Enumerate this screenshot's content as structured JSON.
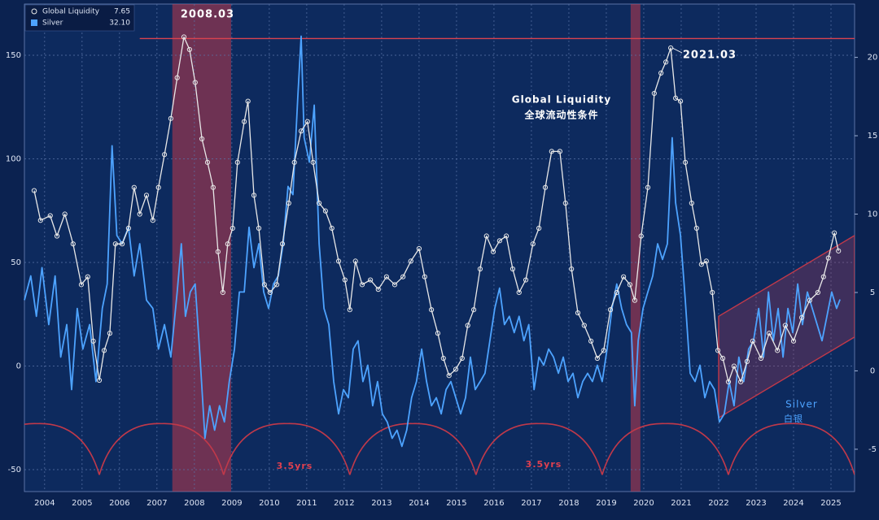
{
  "chart_data": {
    "type": "line",
    "xlim": [
      2003.96,
      2026.13
    ],
    "xticks": [
      {
        "value": 2004.5,
        "label": "2004"
      },
      {
        "value": 2005.5,
        "label": "2005"
      },
      {
        "value": 2006.5,
        "label": "2006"
      },
      {
        "value": 2007.5,
        "label": "2007"
      },
      {
        "value": 2008.5,
        "label": "2008"
      },
      {
        "value": 2009.5,
        "label": "2009"
      },
      {
        "value": 2010.5,
        "label": "2010"
      },
      {
        "value": 2011.5,
        "label": "2011"
      },
      {
        "value": 2012.5,
        "label": "2012"
      },
      {
        "value": 2013.5,
        "label": "2013"
      },
      {
        "value": 2014.5,
        "label": "2014"
      },
      {
        "value": 2015.5,
        "label": "2015"
      },
      {
        "value": 2016.5,
        "label": "2016"
      },
      {
        "value": 2017.5,
        "label": "2017"
      },
      {
        "value": 2018.5,
        "label": "2018"
      },
      {
        "value": 2019.5,
        "label": "2019"
      },
      {
        "value": 2020.5,
        "label": "2020"
      },
      {
        "value": 2021.5,
        "label": "2021"
      },
      {
        "value": 2022.5,
        "label": "2022"
      },
      {
        "value": 2023.5,
        "label": "2023"
      },
      {
        "value": 2024.5,
        "label": "2024"
      },
      {
        "value": 2025.5,
        "label": "2025"
      }
    ],
    "ylim": [
      -60.6,
      174.7
    ],
    "yticks": [
      -50,
      0,
      50,
      100,
      150
    ],
    "y2lim": [
      -7.7,
      23.4
    ],
    "y2ticks": [
      -5,
      0,
      5,
      10,
      15,
      20
    ],
    "grid": true,
    "series": [
      {
        "name": "Global Liquidity",
        "color": "#e8e8e8",
        "axis": "y2",
        "markers": true,
        "legend_value": 7.65,
        "x": [
          2004.22,
          2004.39,
          2004.65,
          2004.83,
          2005.04,
          2005.26,
          2005.48,
          2005.65,
          2005.8,
          2005.96,
          2006.09,
          2006.24,
          2006.39,
          2006.57,
          2006.74,
          2006.89,
          2007.04,
          2007.22,
          2007.39,
          2007.54,
          2007.7,
          2007.87,
          2008.04,
          2008.22,
          2008.37,
          2008.52,
          2008.7,
          2008.85,
          2009.0,
          2009.13,
          2009.26,
          2009.39,
          2009.52,
          2009.65,
          2009.83,
          2009.93,
          2010.09,
          2010.22,
          2010.37,
          2010.52,
          2010.7,
          2010.85,
          2011.02,
          2011.17,
          2011.35,
          2011.52,
          2011.67,
          2011.83,
          2012.0,
          2012.17,
          2012.35,
          2012.52,
          2012.65,
          2012.8,
          2012.98,
          2013.2,
          2013.41,
          2013.63,
          2013.85,
          2014.07,
          2014.28,
          2014.5,
          2014.65,
          2014.83,
          2015.0,
          2015.15,
          2015.3,
          2015.48,
          2015.65,
          2015.8,
          2015.96,
          2016.13,
          2016.3,
          2016.48,
          2016.65,
          2016.83,
          2017.0,
          2017.17,
          2017.35,
          2017.54,
          2017.7,
          2017.87,
          2018.04,
          2018.26,
          2018.41,
          2018.57,
          2018.74,
          2018.91,
          2019.09,
          2019.26,
          2019.43,
          2019.61,
          2019.78,
          2019.96,
          2020.13,
          2020.26,
          2020.43,
          2020.61,
          2020.78,
          2020.96,
          2021.09,
          2021.22,
          2021.35,
          2021.48,
          2021.61,
          2021.78,
          2021.91,
          2022.04,
          2022.17,
          2022.33,
          2022.48,
          2022.61,
          2022.76,
          2022.91,
          2023.09,
          2023.26,
          2023.41,
          2023.63,
          2023.85,
          2024.07,
          2024.28,
          2024.5,
          2024.72,
          2024.93,
          2025.15,
          2025.3,
          2025.43,
          2025.59,
          2025.7
        ],
        "values": [
          11.5,
          9.6,
          9.9,
          8.6,
          10,
          8.1,
          5.5,
          6.0,
          1.9,
          -0.6,
          1.3,
          2.4,
          8.1,
          8.1,
          9.1,
          11.7,
          10,
          11.2,
          9.6,
          11.7,
          13.8,
          16.1,
          18.7,
          21.3,
          20.5,
          18.4,
          14.8,
          13.3,
          11.7,
          7.6,
          5.0,
          8.1,
          9.1,
          13.3,
          15.9,
          17.2,
          11.2,
          9.1,
          5.5,
          5.0,
          5.5,
          8.1,
          10.7,
          13.3,
          15.3,
          15.9,
          13.3,
          10.7,
          10.2,
          9.1,
          7.0,
          5.8,
          3.9,
          7.0,
          5.5,
          5.8,
          5.2,
          6.0,
          5.5,
          6.0,
          7.0,
          7.8,
          6.0,
          3.9,
          2.4,
          0.8,
          -0.3,
          0.1,
          0.8,
          2.9,
          3.9,
          6.5,
          8.6,
          7.6,
          8.3,
          8.6,
          6.5,
          5.0,
          5.8,
          8.1,
          9.1,
          11.7,
          14.0,
          14.0,
          10.7,
          6.5,
          3.7,
          2.9,
          1.9,
          0.8,
          1.3,
          3.9,
          5.0,
          6.0,
          5.5,
          4.5,
          8.6,
          11.7,
          17.7,
          19.0,
          19.7,
          20.6,
          17.4,
          17.2,
          13.3,
          10.7,
          9.1,
          6.8,
          7.0,
          5.0,
          1.3,
          0.8,
          -0.7,
          0.3,
          -0.7,
          0.6,
          1.9,
          0.8,
          2.4,
          1.3,
          2.9,
          1.9,
          3.4,
          4.5,
          5.0,
          6.0,
          7.2,
          8.8,
          7.65
        ]
      },
      {
        "name": "Silver",
        "color": "#4da3ff",
        "axis": "y",
        "markers": false,
        "legend_value": {
          "value": 32.1,
          "label": "32.10"
        },
        "x": [
          2003.96,
          2004.13,
          2004.28,
          2004.43,
          2004.61,
          2004.78,
          2004.93,
          2005.09,
          2005.22,
          2005.37,
          2005.52,
          2005.7,
          2005.87,
          2006.04,
          2006.17,
          2006.3,
          2006.43,
          2006.57,
          2006.74,
          2006.89,
          2007.04,
          2007.22,
          2007.39,
          2007.54,
          2007.7,
          2007.87,
          2008.04,
          2008.15,
          2008.26,
          2008.39,
          2008.52,
          2008.65,
          2008.78,
          2008.91,
          2009.04,
          2009.17,
          2009.3,
          2009.43,
          2009.57,
          2009.7,
          2009.83,
          2009.96,
          2010.09,
          2010.22,
          2010.35,
          2010.48,
          2010.61,
          2010.74,
          2010.87,
          2011.0,
          2011.13,
          2011.26,
          2011.35,
          2011.43,
          2011.57,
          2011.7,
          2011.83,
          2011.96,
          2012.09,
          2012.22,
          2012.35,
          2012.48,
          2012.61,
          2012.74,
          2012.87,
          2013.0,
          2013.13,
          2013.26,
          2013.39,
          2013.52,
          2013.65,
          2013.78,
          2013.91,
          2014.04,
          2014.17,
          2014.3,
          2014.43,
          2014.57,
          2014.7,
          2014.83,
          2014.96,
          2015.09,
          2015.22,
          2015.35,
          2015.48,
          2015.61,
          2015.74,
          2015.87,
          2016.0,
          2016.13,
          2016.26,
          2016.39,
          2016.52,
          2016.65,
          2016.78,
          2016.91,
          2017.04,
          2017.17,
          2017.3,
          2017.43,
          2017.57,
          2017.7,
          2017.83,
          2017.96,
          2018.09,
          2018.22,
          2018.35,
          2018.48,
          2018.61,
          2018.74,
          2018.87,
          2019.0,
          2019.13,
          2019.26,
          2019.39,
          2019.52,
          2019.65,
          2019.78,
          2019.91,
          2020.04,
          2020.17,
          2020.26,
          2020.35,
          2020.48,
          2020.61,
          2020.74,
          2020.87,
          2021.0,
          2021.13,
          2021.26,
          2021.35,
          2021.48,
          2021.61,
          2021.74,
          2021.87,
          2022.0,
          2022.13,
          2022.26,
          2022.39,
          2022.52,
          2022.65,
          2022.78,
          2022.91,
          2023.04,
          2023.17,
          2023.3,
          2023.43,
          2023.57,
          2023.7,
          2023.83,
          2023.96,
          2024.09,
          2024.22,
          2024.35,
          2024.48,
          2024.61,
          2024.74,
          2024.87,
          2025.0,
          2025.13,
          2025.26,
          2025.39,
          2025.52,
          2025.65,
          2025.74
        ],
        "values": [
          31.8,
          43.5,
          24,
          47.5,
          20,
          43.5,
          4.3,
          20,
          -11.4,
          27.8,
          8.2,
          20,
          -7.5,
          27.8,
          39.6,
          106.3,
          63,
          59,
          67,
          43.5,
          59,
          31.8,
          27.8,
          8.2,
          20,
          4.3,
          35.7,
          59,
          24,
          35.7,
          39.6,
          4.3,
          -34.9,
          -19.2,
          -31,
          -19.2,
          -27,
          -7.5,
          8.2,
          35.7,
          35.7,
          67,
          47.5,
          59,
          35.7,
          27.8,
          39.6,
          43.5,
          59,
          86.7,
          82.7,
          129.8,
          159.2,
          110.2,
          98.4,
          125.9,
          59,
          27.8,
          20,
          -7.5,
          -23.1,
          -11.4,
          -15.3,
          8.2,
          12.2,
          -7.5,
          0.4,
          -19.2,
          -7.5,
          -23.1,
          -27,
          -34.9,
          -31,
          -38.8,
          -31,
          -15.3,
          -7.5,
          8.2,
          -7.5,
          -19.2,
          -15.3,
          -23.1,
          -11.4,
          -7.5,
          -15.3,
          -23.1,
          -15.3,
          4.3,
          -11.4,
          -7.5,
          -3.5,
          12.2,
          27.8,
          37.6,
          20,
          24,
          16.1,
          24,
          12.2,
          20,
          -11.4,
          4.3,
          0.4,
          8.2,
          4.3,
          -3.5,
          4.3,
          -7.5,
          -3.5,
          -15.3,
          -7.5,
          -3.5,
          -7.5,
          0.4,
          -7.5,
          8.2,
          27.8,
          39.6,
          27.8,
          20,
          16.1,
          -19.2,
          12.2,
          27.8,
          35.7,
          43.5,
          59,
          51.4,
          59,
          110.2,
          78.8,
          63,
          31.8,
          -3.5,
          -7.5,
          0.4,
          -15.3,
          -7.5,
          -11.4,
          -27,
          -23.1,
          -7.5,
          -19.2,
          4.3,
          -7.5,
          8.2,
          12.2,
          27.8,
          4.3,
          35.7,
          12.2,
          27.8,
          4.3,
          27.8,
          16.1,
          39.6,
          20,
          35.7,
          27.8,
          20,
          12.2,
          24,
          35.7,
          27.8,
          32.1
        ]
      }
    ],
    "shaded_periods": [
      [
        2007.91,
        2009.48
      ],
      [
        2020.15,
        2020.41
      ]
    ],
    "reference_line": {
      "axis": "y2",
      "value": 21.2,
      "from": 2007.04
    },
    "cycle_troughs": [
      2005.96,
      2009.28,
      2012.65,
      2016.02,
      2019.39,
      2022.76,
      2026.13
    ],
    "cycle_range": [
      -52.5,
      -27.8
    ],
    "channel": {
      "x": [
        2022.5,
        2026.13
      ],
      "lower": [
        -25,
        14
      ],
      "upper": [
        24,
        63
      ]
    },
    "annotations": [
      "2008.03",
      "2021.03",
      "Global Liquidity",
      "全球流动性条件",
      "Silver",
      "白银",
      "3.5yrs",
      "3.5yrs"
    ]
  }
}
